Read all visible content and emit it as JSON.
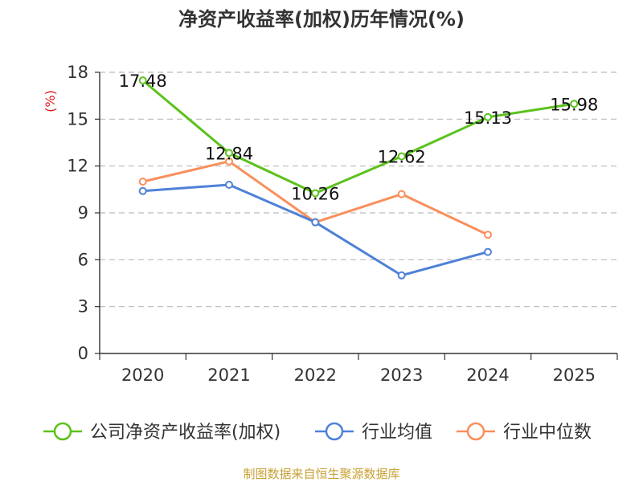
{
  "colors": {
    "company": "#5bc21c",
    "industry_avg": "#4f81d8",
    "industry_median": "#f98f5b",
    "grid": "#bbbbbb",
    "axis": "#333333",
    "ylabel": "#e0191c",
    "source": "#c8a034"
  },
  "chart_data": {
    "type": "line",
    "title": "净资产收益率(加权)历年情况(%)",
    "ylabel": "(%)",
    "xlabel": "",
    "categories": [
      "2020",
      "2021",
      "2022",
      "2023",
      "2024",
      "2025"
    ],
    "ylim": [
      0,
      18
    ],
    "yticks": [
      0,
      3,
      6,
      9,
      12,
      15,
      18
    ],
    "ytick_labels": [
      "0",
      "3",
      "6",
      "9",
      "12",
      "15",
      "18"
    ],
    "grid": true,
    "legend_position": "bottom",
    "series": [
      {
        "key": "company",
        "name": "公司净资产收益率(加权)",
        "values": [
          17.48,
          12.84,
          10.26,
          12.62,
          15.13,
          15.98
        ],
        "labels": [
          "17.48",
          "12.84",
          "10.26",
          "12.62",
          "15.13",
          "15.98"
        ],
        "show_labels": true
      },
      {
        "key": "industry_avg",
        "name": "行业均值",
        "values": [
          10.4,
          10.8,
          8.4,
          5.0,
          6.5,
          null
        ],
        "show_labels": false
      },
      {
        "key": "industry_median",
        "name": "行业中位数",
        "values": [
          11.0,
          12.3,
          8.4,
          10.2,
          7.6,
          null
        ],
        "show_labels": false
      }
    ]
  },
  "source_text": "制图数据来自恒生聚源数据库"
}
